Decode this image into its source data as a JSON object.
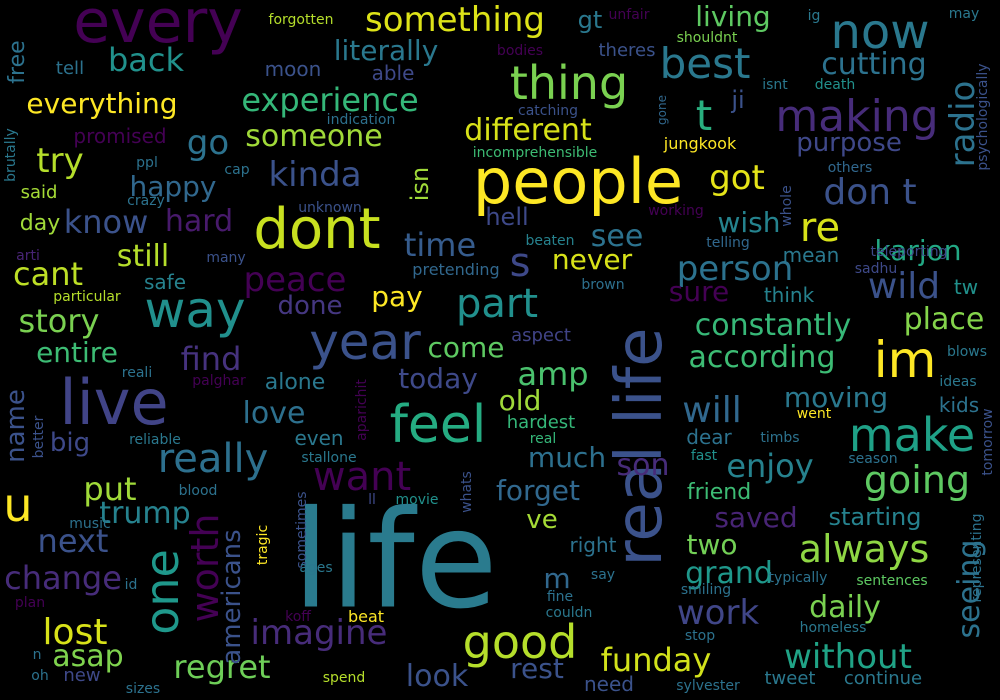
{
  "words": [
    {
      "t": "life",
      "c": "#2a7b8e",
      "v": false
    },
    {
      "t": "people",
      "c": "#fde725",
      "v": false
    },
    {
      "t": "real life",
      "c": "#3b528b",
      "v": true
    },
    {
      "t": "dont",
      "c": "#c8e020",
      "v": false
    },
    {
      "t": "live",
      "c": "#414487",
      "v": false
    },
    {
      "t": "every",
      "c": "#440154",
      "v": false
    },
    {
      "t": "way",
      "c": "#21908d",
      "v": false
    },
    {
      "t": "feel",
      "c": "#25ac82",
      "v": false
    },
    {
      "t": "year",
      "c": "#3b528b",
      "v": false
    },
    {
      "t": "make",
      "c": "#1fa187",
      "v": false
    },
    {
      "t": "im",
      "c": "#fde725",
      "v": false
    },
    {
      "t": "good",
      "c": "#b5de2b",
      "v": false
    },
    {
      "t": "thing",
      "c": "#7ad151",
      "v": false
    },
    {
      "t": "now",
      "c": "#2a788e",
      "v": false
    },
    {
      "t": "making",
      "c": "#472c7a",
      "v": false
    },
    {
      "t": "best",
      "c": "#2a788e",
      "v": false
    },
    {
      "t": "u",
      "c": "#fde725",
      "v": false
    },
    {
      "t": "t",
      "c": "#29af7f",
      "v": false
    },
    {
      "t": "one",
      "c": "#1f988b",
      "v": true
    },
    {
      "t": "really",
      "c": "#2d708e",
      "v": false
    },
    {
      "t": "want",
      "c": "#440154",
      "v": false
    },
    {
      "t": "part",
      "c": "#21908d",
      "v": false
    },
    {
      "t": "something",
      "c": "#dde318",
      "v": false
    },
    {
      "t": "don t",
      "c": "#3b528b",
      "v": false
    },
    {
      "t": "re",
      "c": "#d8e219",
      "v": false
    },
    {
      "t": "s",
      "c": "#3e4989",
      "v": false
    },
    {
      "t": "always",
      "c": "#8fd744",
      "v": false
    },
    {
      "t": "going",
      "c": "#5ec962",
      "v": false
    },
    {
      "t": "kinda",
      "c": "#3b528b",
      "v": false
    },
    {
      "t": "someone",
      "c": "#a0da39",
      "v": false
    },
    {
      "t": "experience",
      "c": "#35b779",
      "v": false
    },
    {
      "t": "different",
      "c": "#d8e219",
      "v": false
    },
    {
      "t": "got",
      "c": "#e5e419",
      "v": false
    },
    {
      "t": "go",
      "c": "#2c728e",
      "v": false
    },
    {
      "t": "worth",
      "c": "#440154",
      "v": true
    },
    {
      "t": "next",
      "c": "#3b528b",
      "v": false
    },
    {
      "t": "trump",
      "c": "#26828e",
      "v": false
    },
    {
      "t": "imagine",
      "c": "#472c7a",
      "v": false
    },
    {
      "t": "will",
      "c": "#31688e",
      "v": false
    },
    {
      "t": "lost",
      "c": "#d8e219",
      "v": false
    },
    {
      "t": "change",
      "c": "#472c7a",
      "v": false
    },
    {
      "t": "find",
      "c": "#46327e",
      "v": false
    },
    {
      "t": "peace",
      "c": "#440154",
      "v": false
    },
    {
      "t": "person",
      "c": "#2c728e",
      "v": false
    },
    {
      "t": "constantly",
      "c": "#37b878",
      "v": false
    },
    {
      "t": "according",
      "c": "#3dbc74",
      "v": false
    },
    {
      "t": "enjoy",
      "c": "#26828e",
      "v": false
    },
    {
      "t": "work",
      "c": "#404688",
      "v": false
    },
    {
      "t": "without",
      "c": "#20a386",
      "v": false
    },
    {
      "t": "funday",
      "c": "#d2e21b",
      "v": false
    },
    {
      "t": "regret",
      "c": "#6ece58",
      "v": false
    },
    {
      "t": "put",
      "c": "#a0da39",
      "v": false
    },
    {
      "t": "love",
      "c": "#2d708e",
      "v": false
    },
    {
      "t": "time",
      "c": "#365c8d",
      "v": false
    },
    {
      "t": "know",
      "c": "#3b528b",
      "v": false
    },
    {
      "t": "cant",
      "c": "#bddf26",
      "v": false
    },
    {
      "t": "story",
      "c": "#7ad151",
      "v": false
    },
    {
      "t": "entire",
      "c": "#3dbc74",
      "v": false
    },
    {
      "t": "back",
      "c": "#21918c",
      "v": false
    },
    {
      "t": "everything",
      "c": "#fde725",
      "v": false
    },
    {
      "t": "try",
      "c": "#b5de2b",
      "v": false
    },
    {
      "t": "happy",
      "c": "#31688e",
      "v": false
    },
    {
      "t": "hard",
      "c": "#481a6c",
      "v": false
    },
    {
      "t": "still",
      "c": "#b5de2b",
      "v": false
    },
    {
      "t": "literally",
      "c": "#2a788e",
      "v": false
    },
    {
      "t": "living",
      "c": "#5ec962",
      "v": false
    },
    {
      "t": "cutting",
      "c": "#2c728e",
      "v": false
    },
    {
      "t": "radio",
      "c": "#2c728e",
      "v": true
    },
    {
      "t": "wild",
      "c": "#3b528b",
      "v": false
    },
    {
      "t": "place",
      "c": "#84d44b",
      "v": false
    },
    {
      "t": "karjon",
      "c": "#22a884",
      "v": false
    },
    {
      "t": "purpose",
      "c": "#3f4889",
      "v": false
    },
    {
      "t": "wish",
      "c": "#25838e",
      "v": false
    },
    {
      "t": "see",
      "c": "#2c728e",
      "v": false
    },
    {
      "t": "never",
      "c": "#d8e219",
      "v": false
    },
    {
      "t": "pay",
      "c": "#fde725",
      "v": false
    },
    {
      "t": "done",
      "c": "#453781",
      "v": false
    },
    {
      "t": "amp",
      "c": "#4ac16d",
      "v": false
    },
    {
      "t": "today",
      "c": "#3e4989",
      "v": false
    },
    {
      "t": "come",
      "c": "#5ec962",
      "v": false
    },
    {
      "t": "old",
      "c": "#9fda3a",
      "v": false
    },
    {
      "t": "much",
      "c": "#2d708e",
      "v": false
    },
    {
      "t": "son",
      "c": "#472c7a",
      "v": false
    },
    {
      "t": "forget",
      "c": "#31688e",
      "v": false
    },
    {
      "t": "ve",
      "c": "#a5db36",
      "v": false
    },
    {
      "t": "m",
      "c": "#31688e",
      "v": false
    },
    {
      "t": "grand",
      "c": "#1f988b",
      "v": false
    },
    {
      "t": "two",
      "c": "#73d056",
      "v": false
    },
    {
      "t": "rest",
      "c": "#3b528b",
      "v": false
    },
    {
      "t": "look",
      "c": "#3b528b",
      "v": false
    },
    {
      "t": "asap",
      "c": "#7fd34e",
      "v": false
    },
    {
      "t": "daily",
      "c": "#7ad151",
      "v": false
    },
    {
      "t": "moving",
      "c": "#2a788e",
      "v": false
    },
    {
      "t": "saved",
      "c": "#482475",
      "v": false
    },
    {
      "t": "starting",
      "c": "#26828e",
      "v": false
    },
    {
      "t": "seeing",
      "c": "#2c728e",
      "v": true
    },
    {
      "t": "big",
      "c": "#3e4989",
      "v": false
    },
    {
      "t": "americans",
      "c": "#3b528b",
      "v": true
    },
    {
      "t": "name",
      "c": "#3b528b",
      "v": true
    },
    {
      "t": "alone",
      "c": "#2a788e",
      "v": false
    },
    {
      "t": "isn",
      "c": "#a0da39",
      "v": true
    },
    {
      "t": "hell",
      "c": "#3e4989",
      "v": false
    },
    {
      "t": "ji",
      "c": "#3b528b",
      "v": false
    },
    {
      "t": "tw",
      "c": "#21918c",
      "v": false
    },
    {
      "t": "sure",
      "c": "#440154",
      "v": false
    },
    {
      "t": "think",
      "c": "#26828e",
      "v": false
    },
    {
      "t": "mean",
      "c": "#2a788e",
      "v": false
    },
    {
      "t": "kids",
      "c": "#2c728e",
      "v": false
    },
    {
      "t": "dear",
      "c": "#2c728e",
      "v": false
    },
    {
      "t": "friend",
      "c": "#3dbc74",
      "v": false
    },
    {
      "t": "ideas",
      "c": "#2a788e",
      "v": false
    },
    {
      "t": "blows",
      "c": "#2a788e",
      "v": false
    },
    {
      "t": "gt",
      "c": "#2a788e",
      "v": false
    },
    {
      "t": "free",
      "c": "#2c728e",
      "v": true
    },
    {
      "t": "tell",
      "c": "#2c728e",
      "v": false
    },
    {
      "t": "moon",
      "c": "#3b528b",
      "v": false
    },
    {
      "t": "able",
      "c": "#3e4989",
      "v": false
    },
    {
      "t": "promised",
      "c": "#440154",
      "v": false
    },
    {
      "t": "said",
      "c": "#a5db36",
      "v": false
    },
    {
      "t": "day",
      "c": "#a0da39",
      "v": false
    },
    {
      "t": "safe",
      "c": "#26828e",
      "v": false
    },
    {
      "t": "even",
      "c": "#2a788e",
      "v": false
    },
    {
      "t": "hardest",
      "c": "#35b779",
      "v": false
    },
    {
      "t": "aspect",
      "c": "#414487",
      "v": false
    },
    {
      "t": "pretending",
      "c": "#31688e",
      "v": false
    },
    {
      "t": "brown",
      "c": "#2d708e",
      "v": false
    },
    {
      "t": "whole",
      "c": "#3b528b",
      "v": true
    },
    {
      "t": "teleporting",
      "c": "#3e4989",
      "v": false
    },
    {
      "t": "sadhu",
      "c": "#3e4989",
      "v": false
    },
    {
      "t": "telling",
      "c": "#31688e",
      "v": false
    },
    {
      "t": "working",
      "c": "#440154",
      "v": false
    },
    {
      "t": "jungkook",
      "c": "#fde725",
      "v": false
    },
    {
      "t": "incomprehensible",
      "c": "#3dbc74",
      "v": false
    },
    {
      "t": "catching",
      "c": "#3b528b",
      "v": false
    },
    {
      "t": "indication",
      "c": "#2d708e",
      "v": false
    },
    {
      "t": "forgotten",
      "c": "#b5de2b",
      "v": false
    },
    {
      "t": "unfair",
      "c": "#440154",
      "v": false
    },
    {
      "t": "shouldnt",
      "c": "#7ad151",
      "v": false
    },
    {
      "t": "theres",
      "c": "#3b528b",
      "v": false
    },
    {
      "t": "bodies",
      "c": "#440154",
      "v": false
    },
    {
      "t": "isnt",
      "c": "#2a788e",
      "v": false
    },
    {
      "t": "death",
      "c": "#21918c",
      "v": false
    },
    {
      "t": "ig",
      "c": "#2a788e",
      "v": false
    },
    {
      "t": "may",
      "c": "#2a788e",
      "v": false
    },
    {
      "t": "psychologically",
      "c": "#3b528b",
      "v": true
    },
    {
      "t": "others",
      "c": "#31688e",
      "v": false
    },
    {
      "t": "brutally",
      "c": "#2a788e",
      "v": true
    },
    {
      "t": "ppl",
      "c": "#2c728e",
      "v": false
    },
    {
      "t": "cap",
      "c": "#2c728e",
      "v": false
    },
    {
      "t": "crazy",
      "c": "#2c728e",
      "v": false
    },
    {
      "t": "unknown",
      "c": "#3b528b",
      "v": false
    },
    {
      "t": "beaten",
      "c": "#26828e",
      "v": false
    },
    {
      "t": "arti",
      "c": "#482475",
      "v": false
    },
    {
      "t": "many",
      "c": "#3b528b",
      "v": false
    },
    {
      "t": "particular",
      "c": "#b5de2b",
      "v": false
    },
    {
      "t": "reali",
      "c": "#2c728e",
      "v": false
    },
    {
      "t": "palghar",
      "c": "#440154",
      "v": false
    },
    {
      "t": "aparichit",
      "c": "#440154",
      "v": true
    },
    {
      "t": "reliable",
      "c": "#2a788e",
      "v": false
    },
    {
      "t": "blood",
      "c": "#2c728e",
      "v": false
    },
    {
      "t": "better",
      "c": "#3b528b",
      "v": true
    },
    {
      "t": "stallone",
      "c": "#2a788e",
      "v": false
    },
    {
      "t": "real",
      "c": "#35b779",
      "v": false
    },
    {
      "t": "fast",
      "c": "#21918c",
      "v": false
    },
    {
      "t": "timbs",
      "c": "#2c728e",
      "v": false
    },
    {
      "t": "went",
      "c": "#fde725",
      "v": false
    },
    {
      "t": "season",
      "c": "#2c728e",
      "v": false
    },
    {
      "t": "tomorrow",
      "c": "#3b528b",
      "v": true
    },
    {
      "t": "representing",
      "c": "#2c728e",
      "v": true
    },
    {
      "t": "whats",
      "c": "#3b528b",
      "v": true
    },
    {
      "t": "ll",
      "c": "#3e4989",
      "v": false
    },
    {
      "t": "movie",
      "c": "#21918c",
      "v": false
    },
    {
      "t": "sometimes",
      "c": "#3b528b",
      "v": true
    },
    {
      "t": "music",
      "c": "#2c728e",
      "v": false
    },
    {
      "t": "id",
      "c": "#2c728e",
      "v": false
    },
    {
      "t": "plan",
      "c": "#440154",
      "v": false
    },
    {
      "t": "tragic",
      "c": "#fde725",
      "v": true
    },
    {
      "t": "ages",
      "c": "#2a788e",
      "v": false
    },
    {
      "t": "koff",
      "c": "#440154",
      "v": false
    },
    {
      "t": "beat",
      "c": "#fde725",
      "v": false
    },
    {
      "t": "couldn",
      "c": "#2a788e",
      "v": false
    },
    {
      "t": "fine",
      "c": "#2c728e",
      "v": false
    },
    {
      "t": "right",
      "c": "#2c728e",
      "v": false
    },
    {
      "t": "say",
      "c": "#2c728e",
      "v": false
    },
    {
      "t": "smiling",
      "c": "#2c728e",
      "v": false
    },
    {
      "t": "typically",
      "c": "#2c728e",
      "v": false
    },
    {
      "t": "sentences",
      "c": "#5ec962",
      "v": false
    },
    {
      "t": "homeless",
      "c": "#2a788e",
      "v": false
    },
    {
      "t": "stop",
      "c": "#2c728e",
      "v": false
    },
    {
      "t": "tweet",
      "c": "#2a788e",
      "v": false
    },
    {
      "t": "continue",
      "c": "#2a788e",
      "v": false
    },
    {
      "t": "sylvester",
      "c": "#2c728e",
      "v": false
    },
    {
      "t": "need",
      "c": "#3b528b",
      "v": false
    },
    {
      "t": "spend",
      "c": "#b5de2b",
      "v": false
    },
    {
      "t": "sizes",
      "c": "#2c728e",
      "v": false
    },
    {
      "t": "oh",
      "c": "#2c728e",
      "v": false
    },
    {
      "t": "new",
      "c": "#3e4989",
      "v": false
    },
    {
      "t": "n",
      "c": "#2c728e",
      "v": false
    },
    {
      "t": "gone",
      "c": "#31688e",
      "v": true
    }
  ]
}
